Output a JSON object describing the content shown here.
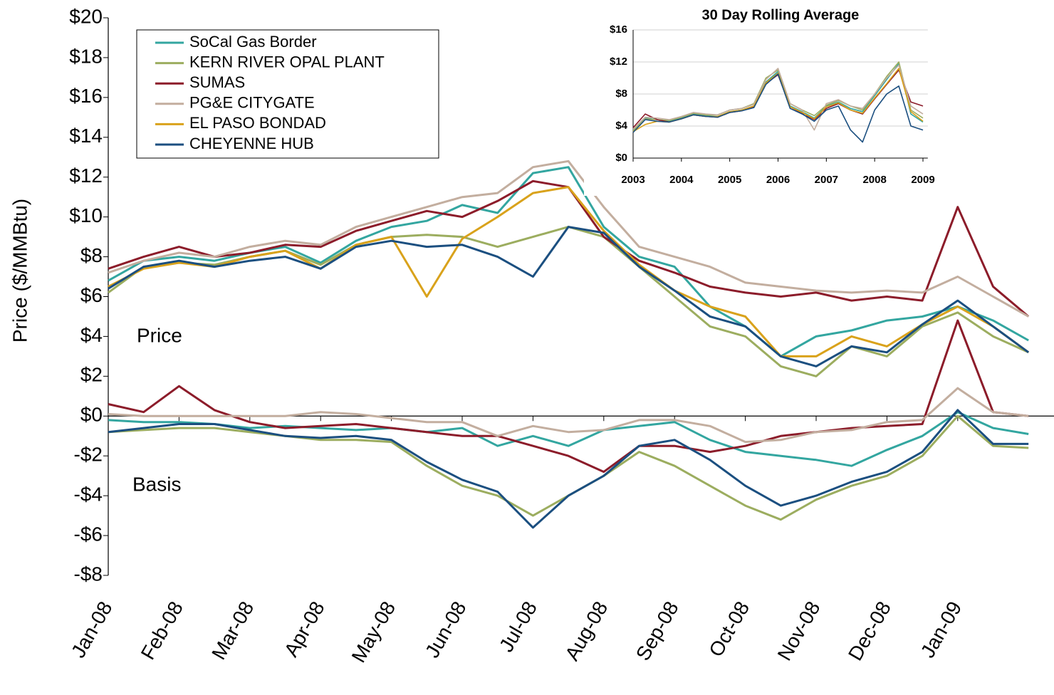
{
  "chart_data": [
    {
      "type": "line",
      "y_label": "Price ($/MMBtu)",
      "annotations": [
        "Price",
        "Basis"
      ],
      "categories": [
        "Jan-08",
        null,
        "Feb-08",
        null,
        "Mar-08",
        null,
        "Apr-08",
        null,
        "May-08",
        null,
        "Jun-08",
        null,
        "Jul-08",
        null,
        "Aug-08",
        null,
        "Sep-08",
        null,
        "Oct-08",
        null,
        "Nov-08",
        null,
        "Dec-08",
        null,
        "Jan-09",
        null,
        null
      ],
      "ylim": [
        -8,
        20
      ],
      "yticks": [
        {
          "value": -8,
          "label": "-$8"
        },
        {
          "value": -6,
          "label": "-$6"
        },
        {
          "value": -4,
          "label": "-$4"
        },
        {
          "value": -2,
          "label": "-$2"
        },
        {
          "value": 0,
          "label": "$0"
        },
        {
          "value": 2,
          "label": "$2"
        },
        {
          "value": 4,
          "label": "$4"
        },
        {
          "value": 6,
          "label": "$6"
        },
        {
          "value": 8,
          "label": "$8"
        },
        {
          "value": 10,
          "label": "$10"
        },
        {
          "value": 12,
          "label": "$12"
        },
        {
          "value": 14,
          "label": "$14"
        },
        {
          "value": 16,
          "label": "$16"
        },
        {
          "value": 18,
          "label": "$18"
        },
        {
          "value": 20,
          "label": "$20"
        }
      ],
      "legend": "upper left",
      "series": [
        {
          "name": "SoCal Gas Border",
          "color": "#33a6a0",
          "values": [
            6.8,
            7.8,
            8.0,
            7.8,
            8.2,
            8.5,
            7.7,
            8.8,
            9.5,
            9.8,
            10.6,
            10.2,
            12.2,
            12.5,
            9.5,
            8.0,
            7.5,
            5.5,
            4.5,
            3.0,
            4.0,
            4.3,
            4.8,
            5.0,
            5.5,
            4.8,
            3.8
          ],
          "basis": [
            -0.2,
            -0.3,
            -0.3,
            -0.4,
            -0.6,
            -0.5,
            -0.6,
            -0.7,
            -0.6,
            -0.8,
            -0.6,
            -1.5,
            -1.0,
            -1.5,
            -0.7,
            -0.5,
            -0.3,
            -1.2,
            -1.8,
            -2.0,
            -2.2,
            -2.5,
            -1.7,
            -1.0,
            0.2,
            -0.6,
            -0.9
          ]
        },
        {
          "name": "KERN RIVER OPAL PLANT",
          "color": "#9cad5f",
          "values": [
            6.2,
            7.5,
            7.7,
            7.6,
            8.0,
            8.3,
            7.6,
            8.6,
            9.0,
            9.1,
            9.0,
            8.5,
            9.0,
            9.5,
            9.0,
            7.5,
            6.0,
            4.5,
            4.0,
            2.5,
            2.0,
            3.5,
            3.0,
            4.5,
            5.2,
            4.0,
            3.2
          ],
          "basis": [
            -0.8,
            -0.7,
            -0.6,
            -0.6,
            -0.8,
            -1.0,
            -1.2,
            -1.2,
            -1.3,
            -2.5,
            -3.5,
            -4.0,
            -5.0,
            -4.0,
            -3.0,
            -1.8,
            -2.5,
            -3.5,
            -4.5,
            -5.2,
            -4.2,
            -3.5,
            -3.0,
            -2.0,
            0.0,
            -1.5,
            -1.6
          ]
        },
        {
          "name": "SUMAS",
          "color": "#8c1c2a",
          "values": [
            7.4,
            8.0,
            8.5,
            8.0,
            8.2,
            8.6,
            8.5,
            9.3,
            9.8,
            10.3,
            10.0,
            10.8,
            11.8,
            11.5,
            9.0,
            7.8,
            7.2,
            6.5,
            6.2,
            6.0,
            6.2,
            5.8,
            6.0,
            5.8,
            10.5,
            6.5,
            5.0
          ],
          "basis": [
            0.6,
            0.2,
            1.5,
            0.3,
            -0.3,
            -0.6,
            -0.5,
            -0.4,
            -0.6,
            -0.8,
            -1.0,
            -1.0,
            -1.5,
            -2.0,
            -2.8,
            -1.5,
            -1.5,
            -1.8,
            -1.5,
            -1.0,
            -0.8,
            -0.6,
            -0.5,
            -0.4,
            4.8,
            0.2,
            0.0
          ]
        },
        {
          "name": "PG&E CITYGATE",
          "color": "#c3ae9f",
          "values": [
            7.2,
            7.8,
            8.2,
            8.0,
            8.5,
            8.8,
            8.6,
            9.5,
            10.0,
            10.5,
            11.0,
            11.2,
            12.5,
            12.8,
            10.5,
            8.5,
            8.0,
            7.5,
            6.7,
            6.5,
            6.3,
            6.2,
            6.3,
            6.2,
            7.0,
            6.0,
            5.0
          ],
          "basis": [
            0.1,
            0.0,
            0.0,
            0.0,
            0.0,
            0.0,
            0.2,
            0.1,
            -0.1,
            -0.3,
            -0.3,
            -1.0,
            -0.5,
            -0.8,
            -0.7,
            -0.2,
            -0.2,
            -0.5,
            -1.3,
            -1.2,
            -0.8,
            -0.7,
            -0.3,
            -0.2,
            1.4,
            0.2,
            0.0
          ]
        },
        {
          "name": "EL PASO BONDAD",
          "color": "#d9a21b",
          "values": [
            6.5,
            7.4,
            7.7,
            7.5,
            8.0,
            8.3,
            7.4,
            8.6,
            9.0,
            6.0,
            8.9,
            10.0,
            11.2,
            11.5,
            9.3,
            7.6,
            6.3,
            5.5,
            5.0,
            3.0,
            3.0,
            4.0,
            3.5,
            4.6,
            5.5,
            4.5,
            3.2
          ]
        },
        {
          "name": "CHEYENNE HUB",
          "color": "#1b4f80",
          "values": [
            6.4,
            7.5,
            7.8,
            7.5,
            7.8,
            8.0,
            7.4,
            8.5,
            8.8,
            8.5,
            8.6,
            8.0,
            7.0,
            9.5,
            9.2,
            7.5,
            6.3,
            5.0,
            4.5,
            3.0,
            2.5,
            3.5,
            3.2,
            4.6,
            5.8,
            4.5,
            3.2
          ],
          "basis": [
            -0.8,
            -0.6,
            -0.4,
            -0.4,
            -0.7,
            -1.0,
            -1.1,
            -1.0,
            -1.2,
            -2.3,
            -3.2,
            -3.8,
            -5.6,
            -4.0,
            -3.0,
            -1.5,
            -1.2,
            -2.2,
            -3.5,
            -4.5,
            -4.0,
            -3.3,
            -2.8,
            -1.8,
            0.3,
            -1.4,
            -1.4
          ]
        }
      ]
    },
    {
      "type": "line",
      "title": "30 Day Rolling Average",
      "x": [
        2003.0,
        2003.25,
        2003.5,
        2003.75,
        2004.0,
        2004.25,
        2004.5,
        2004.75,
        2005.0,
        2005.25,
        2005.5,
        2005.75,
        2006.0,
        2006.25,
        2006.5,
        2006.75,
        2007.0,
        2007.25,
        2007.5,
        2007.75,
        2008.0,
        2008.25,
        2008.5,
        2008.75,
        2009.0
      ],
      "xlim": [
        2003,
        2009.1
      ],
      "xticks": [
        2003,
        2004,
        2005,
        2006,
        2007,
        2008,
        2009
      ],
      "ylim": [
        0,
        16
      ],
      "yticks": [
        {
          "value": 0,
          "label": "$0"
        },
        {
          "value": 4,
          "label": "$4"
        },
        {
          "value": 8,
          "label": "$8"
        },
        {
          "value": 12,
          "label": "$12"
        },
        {
          "value": 16,
          "label": "$16"
        }
      ],
      "grid": true,
      "series": [
        {
          "color": "#33a6a0",
          "values": [
            3.5,
            5.0,
            4.8,
            4.6,
            5.0,
            5.5,
            5.3,
            5.2,
            5.8,
            6.0,
            6.5,
            9.5,
            10.8,
            6.5,
            5.8,
            5.0,
            6.5,
            7.0,
            6.2,
            5.8,
            7.8,
            9.8,
            11.8,
            5.5,
            4.5
          ]
        },
        {
          "color": "#9cad5f",
          "values": [
            3.4,
            4.9,
            4.8,
            4.7,
            5.1,
            5.6,
            5.4,
            5.4,
            6.0,
            6.2,
            6.8,
            10.0,
            11.0,
            6.8,
            6.0,
            5.3,
            6.6,
            7.2,
            6.5,
            6.0,
            8.0,
            10.2,
            12.0,
            6.0,
            5.0
          ]
        },
        {
          "color": "#8c1c2a",
          "values": [
            3.8,
            5.5,
            4.8,
            4.5,
            4.9,
            5.4,
            5.2,
            5.1,
            5.7,
            5.9,
            6.4,
            9.3,
            10.4,
            6.4,
            5.6,
            4.8,
            6.2,
            6.8,
            6.0,
            5.5,
            7.4,
            9.2,
            11.0,
            7.0,
            6.5
          ]
        },
        {
          "color": "#c3ae9f",
          "values": [
            3.6,
            5.1,
            5.0,
            4.8,
            5.2,
            5.7,
            5.5,
            5.4,
            6.0,
            6.2,
            6.7,
            9.8,
            11.2,
            6.8,
            6.0,
            3.5,
            6.8,
            7.3,
            6.5,
            6.2,
            8.0,
            10.0,
            11.6,
            6.5,
            5.5
          ]
        },
        {
          "color": "#d9a21b",
          "values": [
            3.3,
            4.2,
            4.6,
            4.5,
            4.9,
            5.4,
            5.2,
            5.2,
            5.8,
            6.0,
            6.5,
            9.4,
            10.6,
            6.4,
            5.7,
            4.9,
            6.4,
            6.9,
            6.0,
            5.6,
            7.5,
            9.3,
            11.2,
            5.8,
            4.6
          ]
        },
        {
          "color": "#1b4f80",
          "values": [
            3.2,
            4.8,
            4.6,
            4.5,
            4.9,
            5.4,
            5.2,
            5.1,
            5.7,
            5.9,
            6.3,
            9.2,
            10.5,
            6.2,
            5.5,
            4.6,
            6.0,
            6.5,
            3.5,
            2.0,
            6.0,
            8.0,
            9.0,
            4.0,
            3.5
          ]
        }
      ]
    }
  ]
}
